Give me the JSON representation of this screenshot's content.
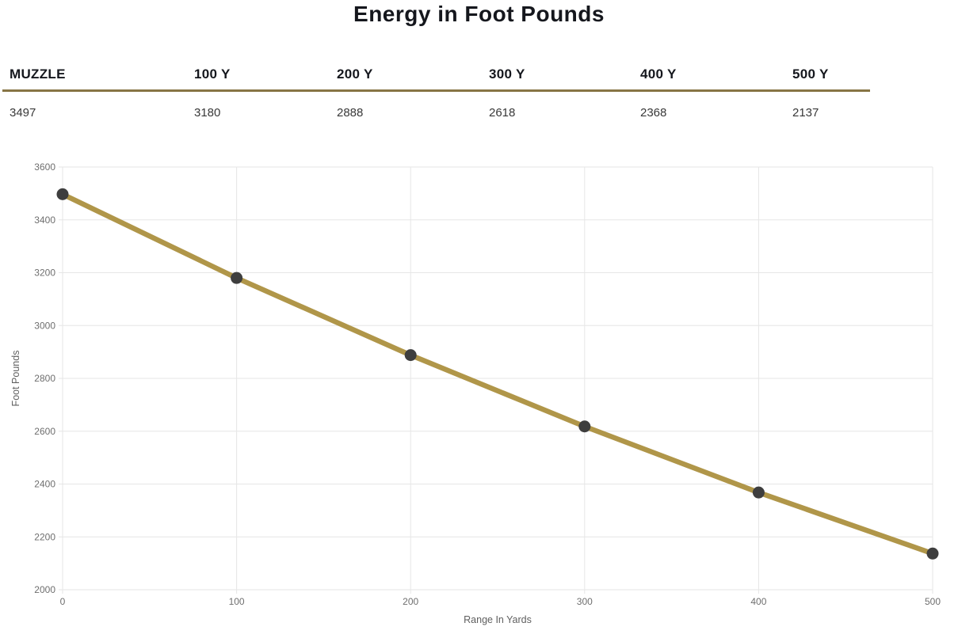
{
  "title": "Energy in Foot Pounds",
  "table": {
    "headers": [
      "MUZZLE",
      "100 Y",
      "200 Y",
      "300 Y",
      "400 Y",
      "500 Y"
    ],
    "values": [
      "3497",
      "3180",
      "2888",
      "2618",
      "2368",
      "2137"
    ]
  },
  "chart_data": {
    "type": "line",
    "x": [
      0,
      100,
      200,
      300,
      400,
      500
    ],
    "series": [
      {
        "name": "Energy in Foot Pounds",
        "values": [
          3497,
          3180,
          2888,
          2618,
          2368,
          2137
        ]
      }
    ],
    "title": "Energy in Foot Pounds",
    "xlabel": "Range In Yards",
    "ylabel": "Foot Pounds",
    "ylim": [
      2000,
      3600
    ],
    "ytick_step": 200,
    "xticks": [
      0,
      100,
      200,
      300,
      400,
      500
    ],
    "grid": true,
    "legend": false,
    "line_color": "#b09649",
    "point_color": "#3e3e3e",
    "grid_color": "#e6e6e6",
    "tick_label_color": "#6e6e6e",
    "axis_title_color": "#5f5f5f"
  },
  "accent_color": "#877545"
}
